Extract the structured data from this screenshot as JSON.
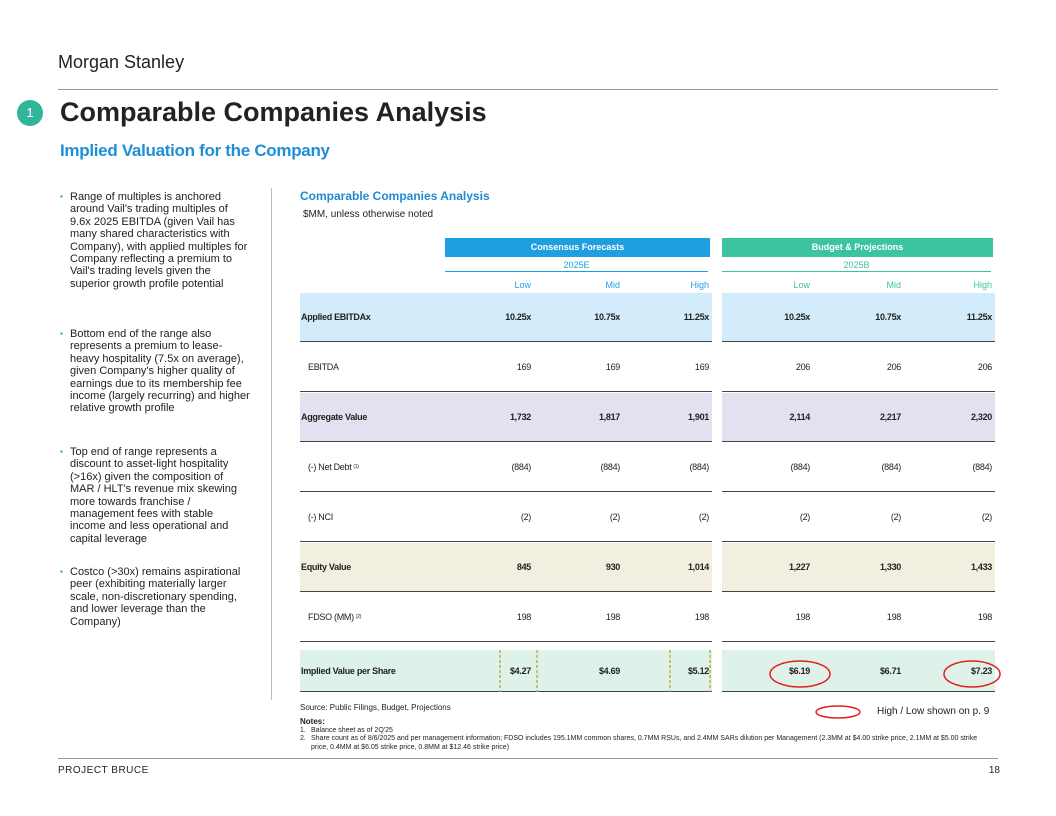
{
  "header": {
    "brand": "Morgan Stanley",
    "section_number": "1",
    "title": "Comparable Companies Analysis",
    "subtitle": "Implied Valuation for the Company"
  },
  "bullets": [
    "Range of multiples is anchored around Vail's trading multiples of 9.6x 2025 EBITDA (given Vail has many shared characteristics with Company), with applied multiples for Company reflecting a premium to Vail's trading levels given the superior growth profile potential",
    "Bottom end of the range also represents a premium to lease-heavy hospitality (7.5x on average), given Company's higher quality of earnings due to its membership fee income (largely recurring) and higher relative growth profile",
    "Top end of range represents a discount to asset-light hospitality (>16x) given the composition of MAR / HLT's revenue mix skewing more towards franchise / management fees with stable income and less operational and capital leverage",
    "Costco (>30x) remains aspirational peer (exhibiting materially larger scale, non-discretionary spending, and lower leverage than the Company)"
  ],
  "table": {
    "title": "Comparable Companies Analysis",
    "units": "$MM, unless otherwise noted",
    "groups": [
      {
        "name": "Consensus Forecasts",
        "period": "2025E",
        "color": "#1f9fe0",
        "columns": [
          "Low",
          "Mid",
          "High"
        ]
      },
      {
        "name": "Budget & Projections",
        "period": "2025B",
        "color": "#3cc3a0",
        "columns": [
          "Low",
          "Mid",
          "High"
        ]
      }
    ],
    "rows": [
      {
        "label": "Applied EBITDAx",
        "fill": "#d3ecfb",
        "values": [
          "10.25x",
          "10.75x",
          "11.25x",
          "10.25x",
          "10.75x",
          "11.25x"
        ]
      },
      {
        "label": "EBITDA",
        "values": [
          "169",
          "169",
          "169",
          "206",
          "206",
          "206"
        ]
      },
      {
        "label": "Aggregate Value",
        "fill": "#e3e1f0",
        "values": [
          "1,732",
          "1,817",
          "1,901",
          "2,114",
          "2,217",
          "2,320"
        ]
      },
      {
        "label": "(-) Net Debt",
        "marker": "(1)",
        "values": [
          "(884)",
          "(884)",
          "(884)",
          "(884)",
          "(884)",
          "(884)"
        ]
      },
      {
        "label": "(-) NCI",
        "values": [
          "(2)",
          "(2)",
          "(2)",
          "(2)",
          "(2)",
          "(2)"
        ]
      },
      {
        "label": "Equity Value",
        "fill": "#f3efe0",
        "values": [
          "845",
          "930",
          "1,014",
          "1,227",
          "1,330",
          "1,433"
        ]
      },
      {
        "label": "FDSO (MM)",
        "marker": "(2)",
        "values": [
          "198",
          "198",
          "198",
          "198",
          "198",
          "198"
        ]
      },
      {
        "label": "Implied Value per Share",
        "fill": "#dff2ea",
        "values": [
          "$4.27",
          "$4.69",
          "$5.12",
          "$6.19",
          "$6.71",
          "$7.23"
        ]
      }
    ]
  },
  "source": "Source: Public Filings, Budget, Projections",
  "annotation": "High / Low shown on p. 9",
  "notes": {
    "title": "Notes:",
    "items": [
      {
        "number": "1.",
        "text": "Balance sheet as of 2Q'25"
      },
      {
        "number": "2.",
        "text": "Share count as of 8/6/2025 and per management information; FDSO includes 195.1MM common shares, 0.7MM RSUs, and 2.4MM SARs dilution per Management (2.3MM at $4.00 strike price, 2.1MM at $5.00 strike price, 0.4MM at $6.05 strike price, 0.8MM at $12.46 strike price)"
      }
    ]
  },
  "footer": {
    "project": "PROJECT BRUCE",
    "page": "18"
  }
}
